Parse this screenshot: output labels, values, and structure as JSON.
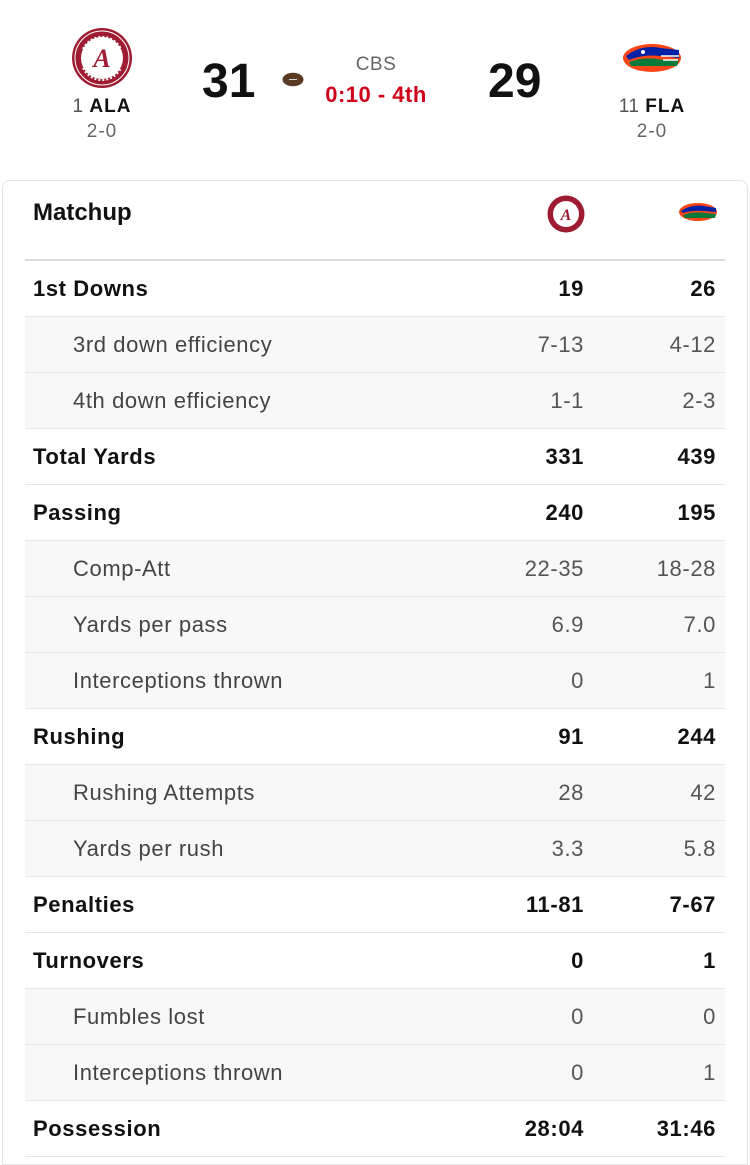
{
  "game": {
    "home": {
      "rank": "1",
      "abbr": "ALA",
      "record": "2-0",
      "score": "31",
      "logo": "alabama-logo",
      "color": "#9e1b32"
    },
    "away": {
      "rank": "11",
      "abbr": "FLA",
      "record": "2-0",
      "score": "29",
      "logo": "florida-gator-logo",
      "color": "#0021a5"
    },
    "network": "CBS",
    "clock": "0:10 - 4th",
    "clock_color": "#d0021b",
    "possession_icon": "football-icon"
  },
  "matchup": {
    "title": "Matchup",
    "rows": [
      {
        "label": "1st Downs",
        "home": "19",
        "away": "26",
        "type": "main"
      },
      {
        "label": "3rd down efficiency",
        "home": "7-13",
        "away": "4-12",
        "type": "sub"
      },
      {
        "label": "4th down efficiency",
        "home": "1-1",
        "away": "2-3",
        "type": "sub"
      },
      {
        "label": "Total Yards",
        "home": "331",
        "away": "439",
        "type": "main"
      },
      {
        "label": "Passing",
        "home": "240",
        "away": "195",
        "type": "main"
      },
      {
        "label": "Comp-Att",
        "home": "22-35",
        "away": "18-28",
        "type": "sub"
      },
      {
        "label": "Yards per pass",
        "home": "6.9",
        "away": "7.0",
        "type": "sub"
      },
      {
        "label": "Interceptions thrown",
        "home": "0",
        "away": "1",
        "type": "sub"
      },
      {
        "label": "Rushing",
        "home": "91",
        "away": "244",
        "type": "main"
      },
      {
        "label": "Rushing Attempts",
        "home": "28",
        "away": "42",
        "type": "sub"
      },
      {
        "label": "Yards per rush",
        "home": "3.3",
        "away": "5.8",
        "type": "sub"
      },
      {
        "label": "Penalties",
        "home": "11-81",
        "away": "7-67",
        "type": "main"
      },
      {
        "label": "Turnovers",
        "home": "0",
        "away": "1",
        "type": "main"
      },
      {
        "label": "Fumbles lost",
        "home": "0",
        "away": "0",
        "type": "sub"
      },
      {
        "label": "Interceptions thrown",
        "home": "0",
        "away": "1",
        "type": "sub"
      },
      {
        "label": "Possession",
        "home": "28:04",
        "away": "31:46",
        "type": "main"
      }
    ]
  }
}
